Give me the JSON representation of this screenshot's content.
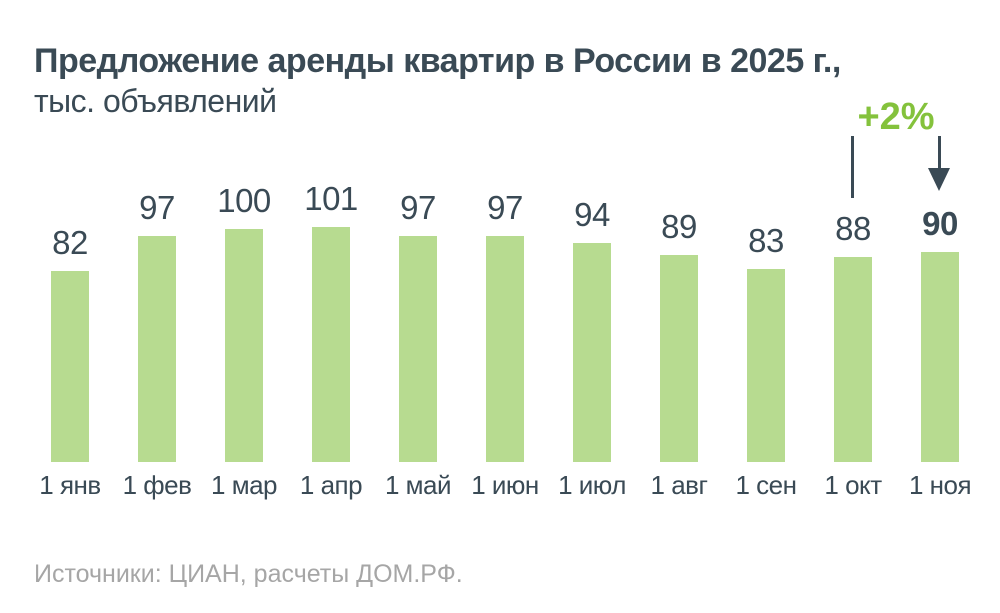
{
  "title": {
    "line1": "Предложение аренды квартир в России в 2025 г.,",
    "line2": "тыс. объявлений"
  },
  "annotation": {
    "label": "+2%"
  },
  "source": "Источники: ЦИАН, расчеты ДОМ.РФ.",
  "colors": {
    "bar_fill": "#B7DB90",
    "accent_green": "#84C23C",
    "text_dark": "#3A4A55",
    "source_gray": "#A6A6A6",
    "background": "#FFFFFF"
  },
  "chart_data": {
    "type": "bar",
    "title": "Предложение аренды квартир в России в 2025 г.,",
    "subtitle": "тыс. объявлений",
    "categories": [
      "1 янв",
      "1 фев",
      "1 мар",
      "1 апр",
      "1 май",
      "1 июн",
      "1 июл",
      "1 авг",
      "1 сен",
      "1 окт",
      "1 ноя"
    ],
    "values": [
      82,
      97,
      100,
      101,
      97,
      97,
      94,
      89,
      83,
      88,
      90
    ],
    "highlight_last": true,
    "annotation": {
      "text": "+2%",
      "from_index": 9,
      "to_index": 10
    },
    "xlabel": "",
    "ylabel": "тыс. объявлений",
    "ylim": [
      0,
      110
    ],
    "grid": false,
    "legend": "none",
    "source": "Источники: ЦИАН, расчеты ДОМ.РФ."
  }
}
